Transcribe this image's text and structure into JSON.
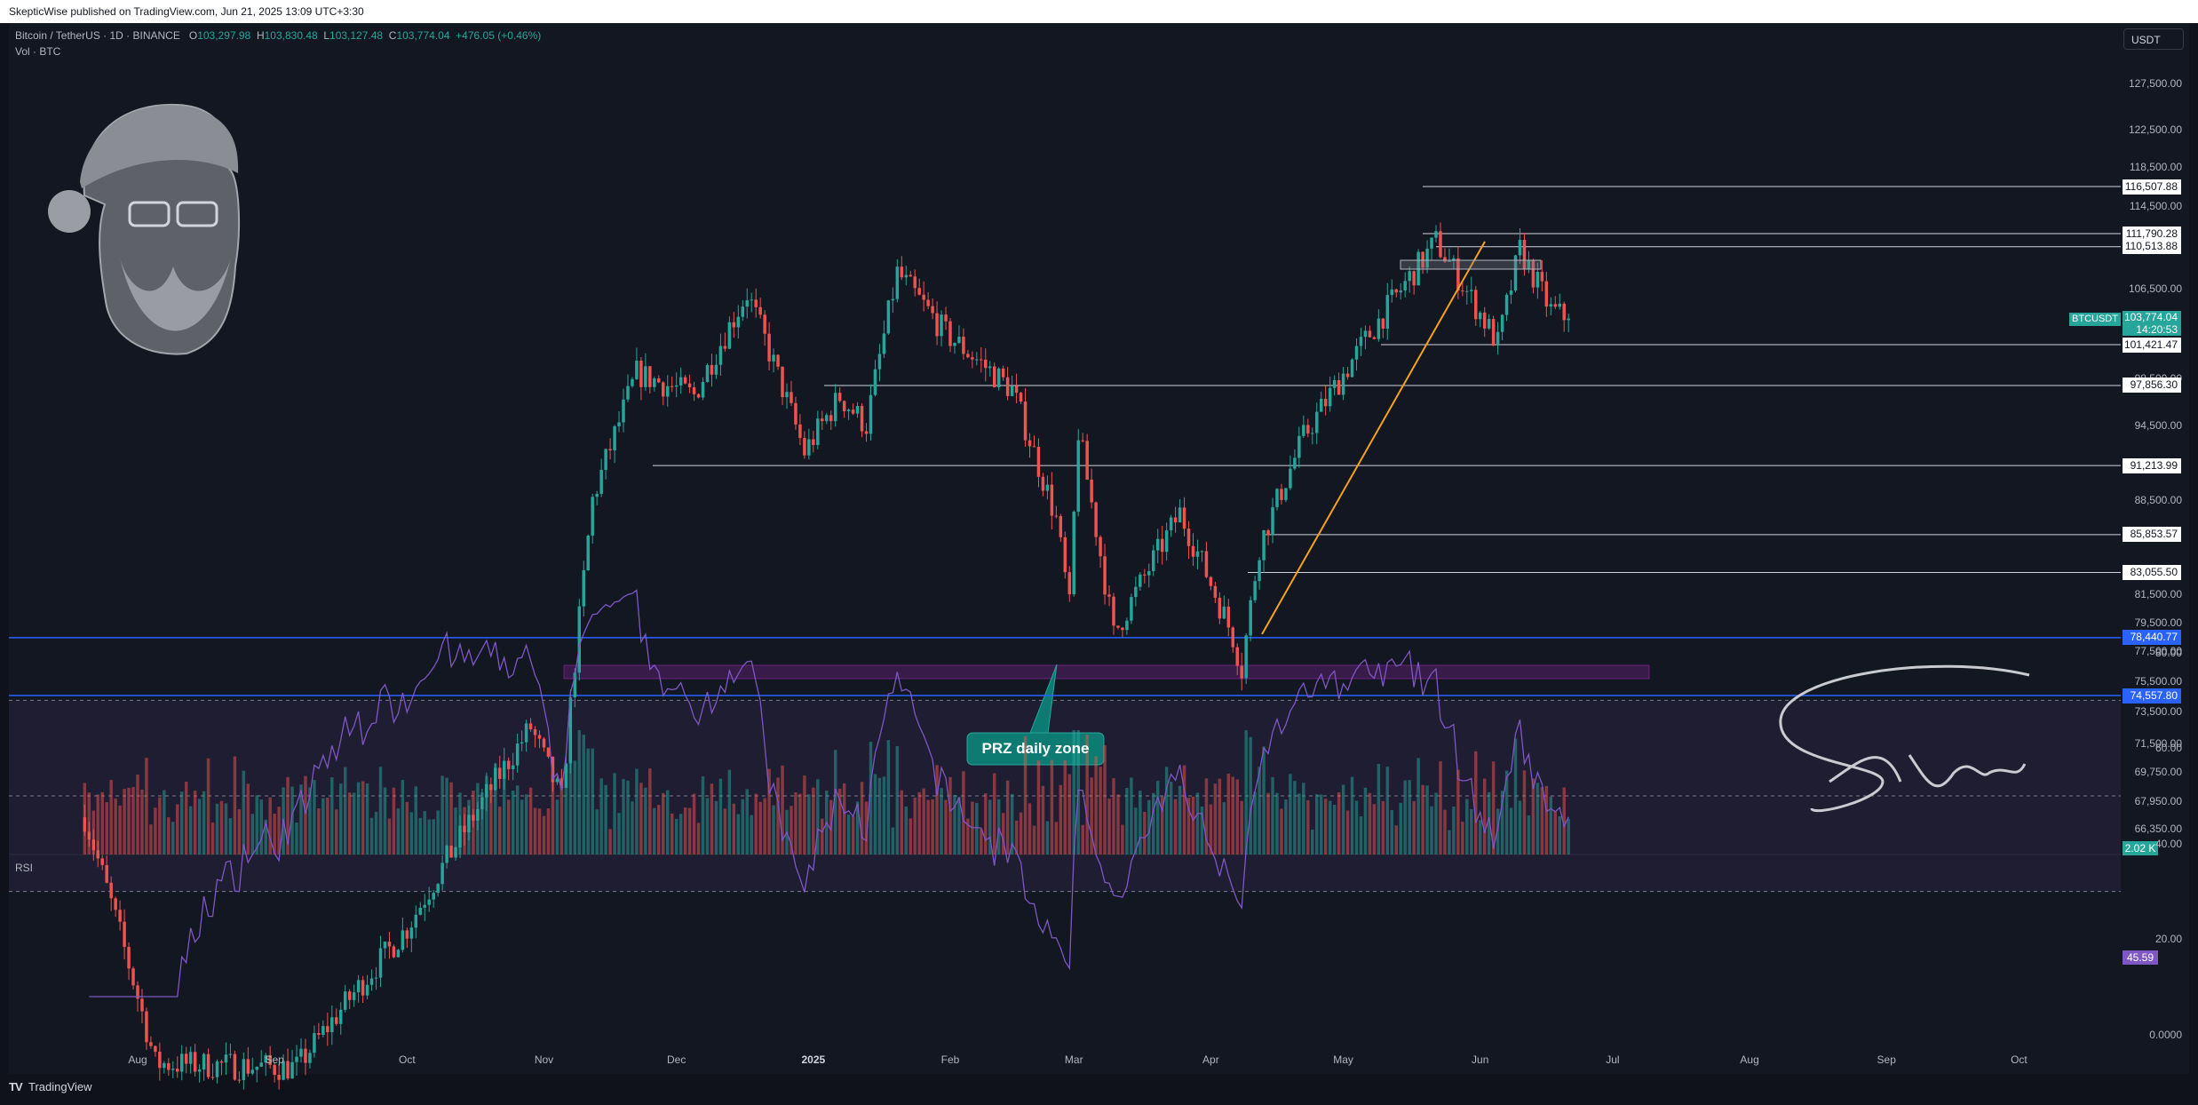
{
  "header": {
    "publisher": "SkepticWise published on TradingView.com, Jun 21, 2025 13:09 UTC+3:30"
  },
  "legend": {
    "symbol": "Bitcoin / TetherUS · 1D · BINANCE",
    "open_label": "O",
    "open": "103,297.98",
    "high_label": "H",
    "high": "103,830.48",
    "low_label": "L",
    "low": "103,127.48",
    "close_label": "C",
    "close": "103,774.04",
    "change": "+476.05 (+0.46%)",
    "volume_label": "Vol · BTC"
  },
  "toolbar": {
    "currency": "USDT"
  },
  "rsi_label": "RSI",
  "symbol_tag": "BTCUSDT",
  "last_price": "103,774.04",
  "countdown": "14:20:53",
  "volume_value": "2.02 K",
  "rsi_value": "45.59",
  "annotation": {
    "text": "PRZ daily zone"
  },
  "signature": "Skeptic",
  "footer": {
    "brand": "TradingView"
  },
  "colors": {
    "up": "#26a69a",
    "down": "#ef5350",
    "blue_line": "#2962ff",
    "trendline": "#f7a21b",
    "rsi": "#7e57c2",
    "zone": "#9c27b0"
  },
  "chart_data": {
    "type": "candlestick",
    "symbol": "BTCUSDT",
    "interval": "1D",
    "price_axis_labels": [
      "127,500.00",
      "122,500.00",
      "118,500.00",
      "114,500.00",
      "106,500.00",
      "98,500.00",
      "94,500.00",
      "88,500.00",
      "81,500.00",
      "79,500.00",
      "77,500.00",
      "75,500.00",
      "73,500.00",
      "71,500.00",
      "69,750.00",
      "67,950.00",
      "66,350.00"
    ],
    "horizontal_levels": [
      {
        "label": "116,507.88",
        "value": 116507.88,
        "color": "white"
      },
      {
        "label": "111,790.28",
        "value": 111790.28,
        "color": "white"
      },
      {
        "label": "110,513.88",
        "value": 110513.88,
        "color": "white"
      },
      {
        "label": "101,421.47",
        "value": 101421.47,
        "color": "white"
      },
      {
        "label": "97,856.30",
        "value": 97856.3,
        "color": "white"
      },
      {
        "label": "91,213.99",
        "value": 91213.99,
        "color": "white"
      },
      {
        "label": "85,853.57",
        "value": 85853.57,
        "color": "white"
      },
      {
        "label": "83,055.50",
        "value": 83055.5,
        "color": "white"
      },
      {
        "label": "78,440.77",
        "value": 78440.77,
        "color": "blue"
      },
      {
        "label": "74,557.80",
        "value": 74557.8,
        "color": "blue"
      }
    ],
    "time_axis_labels": [
      "Aug",
      "Sep",
      "Oct",
      "Nov",
      "Dec",
      "2025",
      "Feb",
      "Mar",
      "Apr",
      "May",
      "Jun",
      "Jul",
      "Aug",
      "Sep",
      "Oct"
    ],
    "rsi": {
      "levels": [
        "80.00",
        "60.00",
        "40.00",
        "20.00",
        "0.0000"
      ],
      "upper_band": 70,
      "middle": 50,
      "lower_band": 30,
      "last": 45.59
    },
    "series_anchors": [
      {
        "date": "2024-07-20",
        "close": 67000
      },
      {
        "date": "2024-08-05",
        "close": 54000
      },
      {
        "date": "2024-09-06",
        "close": 53800
      },
      {
        "date": "2024-10-01",
        "close": 60800
      },
      {
        "date": "2024-10-29",
        "close": 72500
      },
      {
        "date": "2024-11-05",
        "close": 68000
      },
      {
        "date": "2024-11-12",
        "close": 88500
      },
      {
        "date": "2024-11-22",
        "close": 98900
      },
      {
        "date": "2024-12-05",
        "close": 97000
      },
      {
        "date": "2024-12-17",
        "close": 106100
      },
      {
        "date": "2024-12-30",
        "close": 92300
      },
      {
        "date": "2025-01-07",
        "close": 96900
      },
      {
        "date": "2025-01-13",
        "close": 94500
      },
      {
        "date": "2025-01-20",
        "close": 108000
      },
      {
        "date": "2025-01-31",
        "close": 102400
      },
      {
        "date": "2025-02-15",
        "close": 97500
      },
      {
        "date": "2025-02-25",
        "close": 87000
      },
      {
        "date": "2025-02-28",
        "close": 80500
      },
      {
        "date": "2025-03-02",
        "close": 94000
      },
      {
        "date": "2025-03-10",
        "close": 78600
      },
      {
        "date": "2025-03-25",
        "close": 87500
      },
      {
        "date": "2025-04-06",
        "close": 78500
      },
      {
        "date": "2025-04-08",
        "close": 76300
      },
      {
        "date": "2025-04-12",
        "close": 85000
      },
      {
        "date": "2025-04-22",
        "close": 93500
      },
      {
        "date": "2025-05-08",
        "close": 103000
      },
      {
        "date": "2025-05-22",
        "close": 111000
      },
      {
        "date": "2025-06-05",
        "close": 101500
      },
      {
        "date": "2025-06-10",
        "close": 110200
      },
      {
        "date": "2025-06-17",
        "close": 104500
      },
      {
        "date": "2025-06-21",
        "close": 103774.04
      }
    ]
  }
}
